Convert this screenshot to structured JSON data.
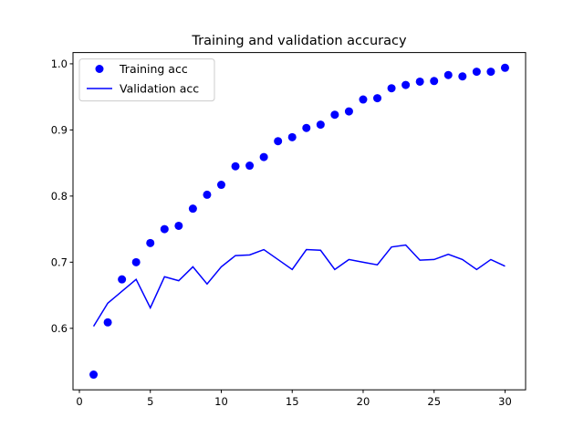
{
  "chart_data": {
    "type": "line",
    "title": "Training and validation accuracy",
    "xlabel": "",
    "ylabel": "",
    "xlim": [
      -0.45,
      31.45
    ],
    "ylim": [
      0.507,
      1.017
    ],
    "xticks": [
      0,
      5,
      10,
      15,
      20,
      25,
      30
    ],
    "xtick_labels": [
      "0",
      "5",
      "10",
      "15",
      "20",
      "25",
      "30"
    ],
    "yticks": [
      0.6,
      0.7,
      0.8,
      0.9,
      1.0
    ],
    "ytick_labels": [
      "0.6",
      "0.7",
      "0.8",
      "0.9",
      "1.0"
    ],
    "grid": false,
    "legend_position": "top-left",
    "x": [
      1,
      2,
      3,
      4,
      5,
      6,
      7,
      8,
      9,
      10,
      11,
      12,
      13,
      14,
      15,
      16,
      17,
      18,
      19,
      20,
      21,
      22,
      23,
      24,
      25,
      26,
      27,
      28,
      29,
      30
    ],
    "series": [
      {
        "name": "Training acc",
        "style": "points",
        "color": "#0000ff",
        "values": [
          0.53,
          0.609,
          0.674,
          0.7,
          0.729,
          0.75,
          0.755,
          0.781,
          0.802,
          0.817,
          0.845,
          0.846,
          0.859,
          0.883,
          0.889,
          0.903,
          0.908,
          0.923,
          0.928,
          0.946,
          0.948,
          0.963,
          0.968,
          0.973,
          0.974,
          0.983,
          0.981,
          0.988,
          0.988,
          0.994
        ]
      },
      {
        "name": "Validation acc",
        "style": "line",
        "color": "#0000ff",
        "values": [
          0.603,
          0.638,
          0.656,
          0.674,
          0.631,
          0.678,
          0.672,
          0.693,
          0.667,
          0.693,
          0.71,
          0.711,
          0.719,
          0.704,
          0.689,
          0.719,
          0.718,
          0.689,
          0.704,
          0.7,
          0.696,
          0.723,
          0.726,
          0.703,
          0.704,
          0.712,
          0.704,
          0.689,
          0.704,
          0.694
        ]
      }
    ]
  }
}
